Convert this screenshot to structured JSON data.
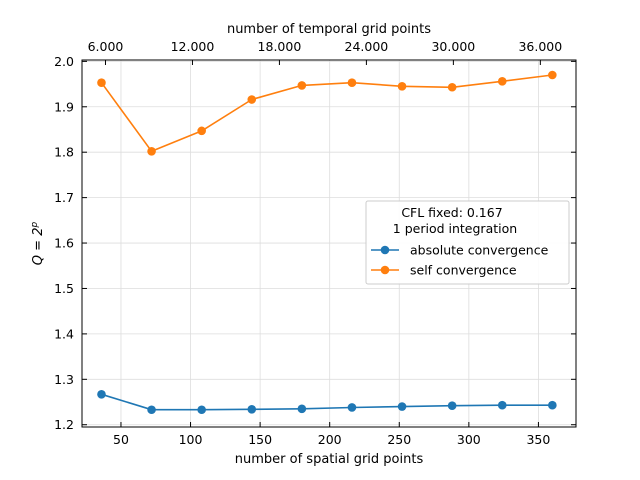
{
  "chart_data": {
    "type": "line",
    "title": "",
    "xlabel": "number of spatial grid points",
    "x2label": "number of temporal grid points",
    "ylabel_prefix": "Q = 2",
    "ylabel_sup": "p",
    "xlim": [
      22,
      377
    ],
    "x2lim": [
      4380,
      38460
    ],
    "ylim": [
      1.195,
      2.003
    ],
    "x_ticks": [
      50,
      100,
      150,
      200,
      250,
      300,
      350
    ],
    "x2_ticks": [
      6000,
      12000,
      18000,
      24000,
      30000,
      36000
    ],
    "x2_tick_labels": [
      "6.000",
      "12.000",
      "18.000",
      "24.000",
      "30.000",
      "36.000"
    ],
    "y_ticks": [
      1.2,
      1.3,
      1.4,
      1.5,
      1.6,
      1.7,
      1.8,
      1.9,
      2.0
    ],
    "y_tick_labels": [
      "1.2",
      "1.3",
      "1.4",
      "1.5",
      "1.6",
      "1.7",
      "1.8",
      "1.9",
      "2.0"
    ],
    "grid": true,
    "x": [
      36,
      72,
      108,
      144,
      180,
      216,
      252,
      288,
      324,
      360
    ],
    "series": [
      {
        "name": "absolute convergence",
        "color": "#1f77b4",
        "values": [
          1.267,
          1.233,
          1.233,
          1.234,
          1.235,
          1.238,
          1.24,
          1.242,
          1.243,
          1.243
        ]
      },
      {
        "name": "self convergence",
        "color": "#ff7f0e",
        "values": [
          1.953,
          1.802,
          1.847,
          1.916,
          1.947,
          1.953,
          1.945,
          1.943,
          1.956,
          1.97
        ]
      }
    ],
    "legend": {
      "title_line1": "CFL fixed: 0.167",
      "title_line2": "1 period integration",
      "position": "center-right"
    }
  }
}
